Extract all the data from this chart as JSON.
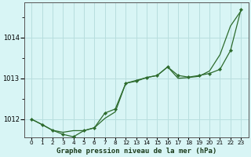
{
  "title": "Graphe pression niveau de la mer (hPa)",
  "background_color": "#d8f5f5",
  "grid_color": "#b8dede",
  "line_color": "#2d6b2d",
  "ylim": [
    1011.55,
    1014.85
  ],
  "yticks": [
    1012,
    1013,
    1014
  ],
  "xlabel_labels": [
    "0",
    "1",
    "2",
    "3",
    "4",
    "5",
    "6",
    "7",
    "8",
    "12",
    "13",
    "14",
    "15",
    "16",
    "17",
    "18",
    "19",
    "20",
    "21",
    "22",
    "23"
  ],
  "series1_y": [
    1012.0,
    1011.87,
    1011.73,
    1011.68,
    1011.72,
    1011.72,
    1011.79,
    1012.02,
    1012.18,
    1012.88,
    1012.95,
    1013.02,
    1013.07,
    1013.28,
    1013.0,
    1013.02,
    1013.05,
    1013.18,
    1013.58,
    1014.28,
    1014.65
  ],
  "series2_y": [
    1012.0,
    1011.87,
    1011.73,
    1011.63,
    1011.57,
    1011.72,
    1011.79,
    1012.15,
    1012.25,
    1012.88,
    1012.93,
    1013.02,
    1013.07,
    1013.28,
    1013.07,
    1013.03,
    1013.07,
    1013.12,
    1013.22,
    1013.68,
    1014.68
  ],
  "title_fontsize": 6.5,
  "ytick_fontsize": 6,
  "xtick_fontsize": 5.2
}
